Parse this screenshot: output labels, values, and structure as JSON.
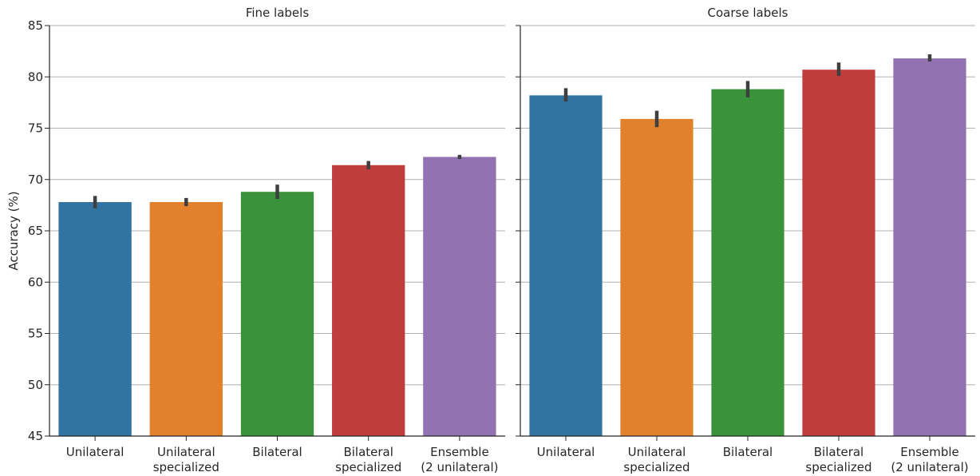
{
  "chart_data": [
    {
      "type": "bar",
      "title": "Fine labels",
      "xlabel": "",
      "ylabel": "Accuracy (%)",
      "ylim": [
        45,
        85
      ],
      "yticks": [
        "45",
        "50",
        "55",
        "60",
        "65",
        "70",
        "75",
        "80",
        "85"
      ],
      "categories": [
        [
          "Unilateral"
        ],
        [
          "Unilateral",
          "specialized"
        ],
        [
          "Bilateral"
        ],
        [
          "Bilateral",
          "specialized"
        ],
        [
          "Ensemble",
          "(2 unilateral)"
        ]
      ],
      "values": [
        67.8,
        67.8,
        68.8,
        71.4,
        72.2
      ],
      "error_low": [
        67.2,
        67.4,
        68.1,
        71.0,
        72.0
      ],
      "error_high": [
        68.4,
        68.2,
        69.5,
        71.8,
        72.4
      ],
      "colors": [
        "#3274a1",
        "#e1812c",
        "#3a923a",
        "#c03d3e",
        "#9372b2"
      ],
      "grid": "horizontal"
    },
    {
      "type": "bar",
      "title": "Coarse labels",
      "xlabel": "",
      "ylabel": "",
      "ylim": [
        45,
        85
      ],
      "yticks": [],
      "categories": [
        [
          "Unilateral"
        ],
        [
          "Unilateral",
          "specialized"
        ],
        [
          "Bilateral"
        ],
        [
          "Bilateral",
          "specialized"
        ],
        [
          "Ensemble",
          "(2 unilateral)"
        ]
      ],
      "values": [
        78.2,
        75.9,
        78.8,
        80.7,
        81.8
      ],
      "error_low": [
        77.6,
        75.1,
        78.0,
        80.1,
        81.5
      ],
      "error_high": [
        78.9,
        76.7,
        79.6,
        81.4,
        82.2
      ],
      "colors": [
        "#3274a1",
        "#e1812c",
        "#3a923a",
        "#c03d3e",
        "#9372b2"
      ],
      "grid": "horizontal"
    }
  ]
}
